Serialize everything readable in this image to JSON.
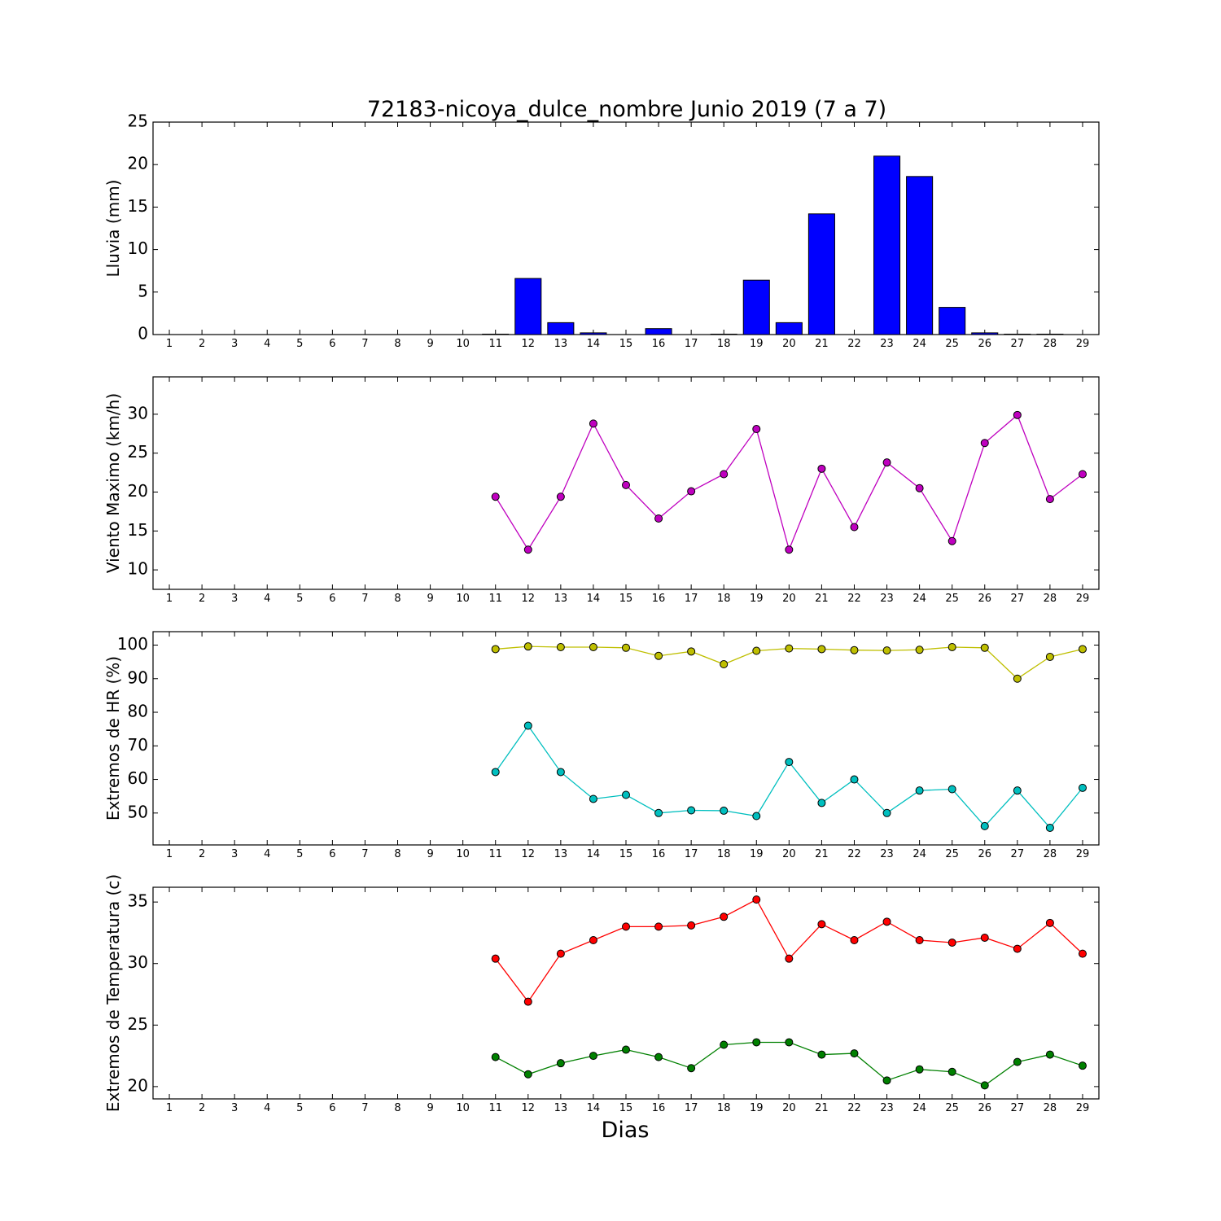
{
  "chart_data": {
    "title": "72183-nicoya_dulce_nombre Junio 2019  (7 a 7)",
    "xlabel": "Dias",
    "days": [
      1,
      2,
      3,
      4,
      5,
      6,
      7,
      8,
      9,
      10,
      11,
      12,
      13,
      14,
      15,
      16,
      17,
      18,
      19,
      20,
      21,
      22,
      23,
      24,
      25,
      26,
      27,
      28,
      29
    ],
    "panels": [
      {
        "type": "bar",
        "ylabel": "Lluvia (mm)",
        "ylim": [
          0,
          25
        ],
        "yticks": [
          0,
          5,
          10,
          15,
          20,
          25
        ],
        "series": [
          {
            "color": "#0000ff",
            "x": [
              11,
              12,
              13,
              14,
              15,
              16,
              17,
              18,
              19,
              20,
              21,
              22,
              23,
              24,
              25,
              26,
              27,
              28,
              29
            ],
            "values": [
              0.05,
              6.6,
              1.4,
              0.2,
              0,
              0.7,
              0,
              0.05,
              6.4,
              1.4,
              14.2,
              0,
              21,
              18.6,
              3.2,
              0.2,
              0.05,
              0.05,
              0
            ]
          }
        ]
      },
      {
        "type": "line",
        "ylabel": "Viento Maximo (km/h)",
        "ylim": [
          7.5,
          34.8
        ],
        "yticks": [
          10,
          15,
          20,
          25,
          30
        ],
        "series": [
          {
            "color": "#bf00bf",
            "x": [
              11,
              12,
              13,
              14,
              15,
              16,
              17,
              18,
              19,
              20,
              21,
              22,
              23,
              24,
              25,
              26,
              27,
              28,
              29
            ],
            "values": [
              19.4,
              12.6,
              19.4,
              28.8,
              20.9,
              16.6,
              20.1,
              22.3,
              28.1,
              12.6,
              23.0,
              15.5,
              23.8,
              20.5,
              13.7,
              26.3,
              29.9,
              19.1,
              22.3
            ]
          }
        ]
      },
      {
        "type": "line",
        "ylabel": "Extremos de HR (%)",
        "ylim": [
          40.5,
          104
        ],
        "yticks": [
          50,
          60,
          70,
          80,
          90,
          100
        ],
        "series": [
          {
            "color": "#bfbf00",
            "x": [
              11,
              12,
              13,
              14,
              15,
              16,
              17,
              18,
              19,
              20,
              21,
              22,
              23,
              24,
              25,
              26,
              27,
              28,
              29
            ],
            "values": [
              98.8,
              99.6,
              99.4,
              99.4,
              99.2,
              96.8,
              98.1,
              94.3,
              98.3,
              99.0,
              98.8,
              98.5,
              98.4,
              98.6,
              99.4,
              99.2,
              90.0,
              96.5,
              98.8
            ]
          },
          {
            "color": "#00bfbf",
            "x": [
              11,
              12,
              13,
              14,
              15,
              16,
              17,
              18,
              19,
              20,
              21,
              22,
              23,
              24,
              25,
              26,
              27,
              28,
              29
            ],
            "values": [
              62.2,
              76.0,
              62.2,
              54.2,
              55.4,
              50.0,
              50.8,
              50.7,
              49.1,
              65.2,
              53.0,
              60.0,
              50.0,
              56.7,
              57.1,
              46.1,
              56.7,
              45.6,
              57.5
            ]
          }
        ]
      },
      {
        "type": "line",
        "ylabel": "Extremos de Temperatura (c)",
        "ylim": [
          19.0,
          36.2
        ],
        "yticks": [
          20,
          25,
          30,
          35
        ],
        "series": [
          {
            "color": "#ff0000",
            "x": [
              11,
              12,
              13,
              14,
              15,
              16,
              17,
              18,
              19,
              20,
              21,
              22,
              23,
              24,
              25,
              26,
              27,
              28,
              29
            ],
            "values": [
              30.4,
              26.9,
              30.8,
              31.9,
              33.0,
              33.0,
              33.1,
              33.8,
              35.2,
              30.4,
              33.2,
              31.9,
              33.4,
              31.9,
              31.7,
              32.1,
              31.2,
              33.3,
              30.8
            ]
          },
          {
            "color": "#008000",
            "x": [
              11,
              12,
              13,
              14,
              15,
              16,
              17,
              18,
              19,
              20,
              21,
              22,
              23,
              24,
              25,
              26,
              27,
              28,
              29
            ],
            "values": [
              22.4,
              21.0,
              21.9,
              22.5,
              23.0,
              22.4,
              21.5,
              23.4,
              23.6,
              23.6,
              22.6,
              22.7,
              20.5,
              21.4,
              21.2,
              20.1,
              22.0,
              22.6,
              21.7
            ]
          }
        ]
      }
    ]
  }
}
